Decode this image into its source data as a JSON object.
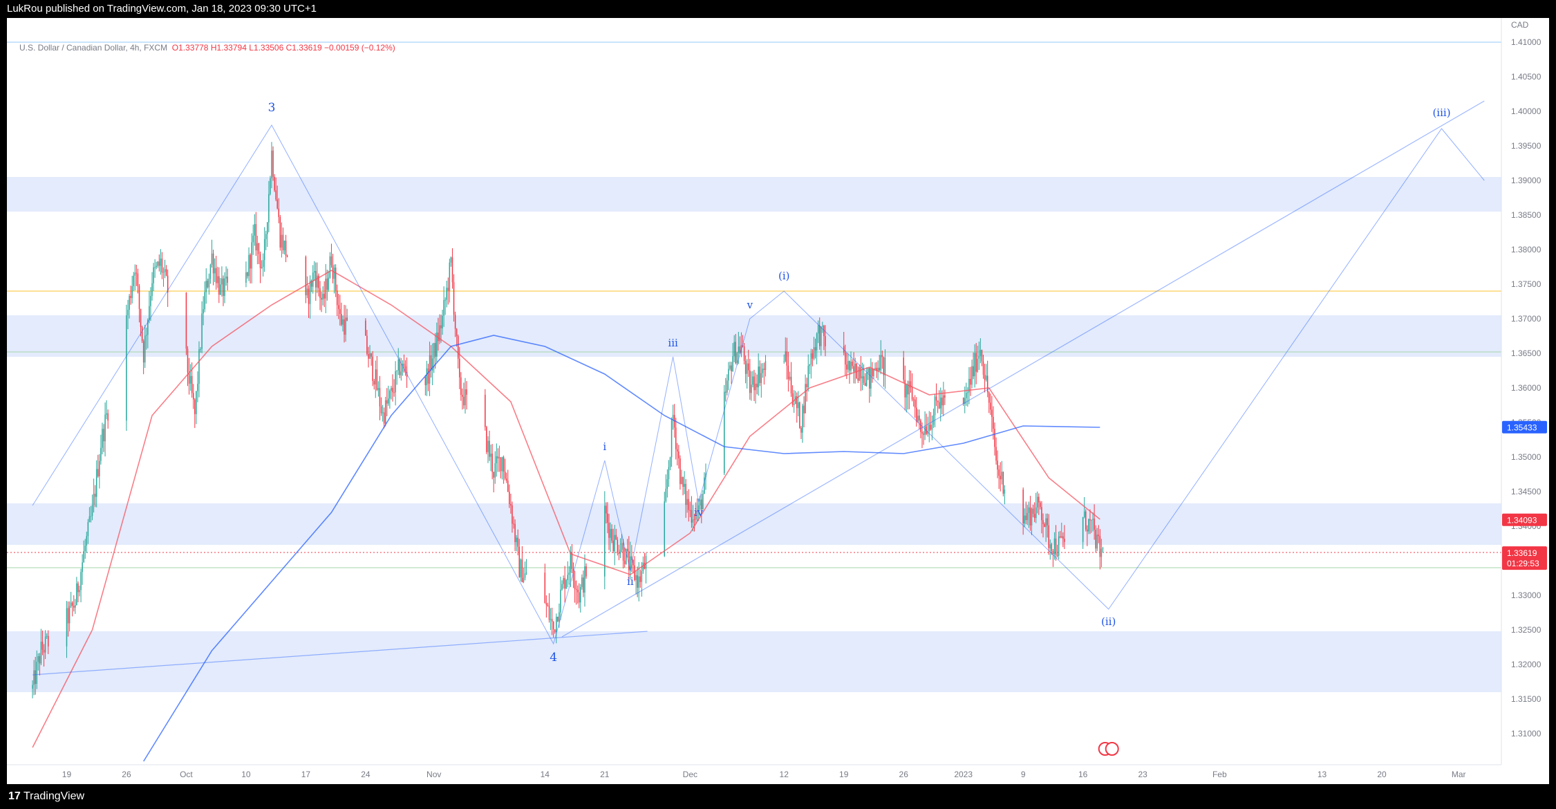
{
  "header": {
    "publisher_line": "LukRou published on TradingView.com, Jan 18, 2023 09:30 UTC+1"
  },
  "footer": {
    "logo_glyph": "17",
    "brand": "TradingView"
  },
  "legend": {
    "symbol": "U.S. Dollar / Canadian Dollar, 4h, FXCM",
    "open": "O1.33778",
    "high": "H1.33794",
    "low": "L1.33506",
    "close": "C1.33619",
    "change": "−0.00159 (−0.12%)"
  },
  "colors": {
    "up": "#26a69a",
    "down": "#f23645",
    "ma_fast": "#f7525f",
    "ma_slow": "#2962ff",
    "zone": "#e3ebfc",
    "wave": "#2962ff",
    "hline_yellow": "#fbc02d",
    "hline_green": "#a5d6a7",
    "hline_blue": "#90caf9",
    "price_tag": "#f23645",
    "ma_tag": "#2962ff"
  },
  "chart_data": {
    "type": "candlestick",
    "symbol": "USDCAD",
    "timeframe": "4h",
    "currency_label": "CAD",
    "ylim": [
      1.3055,
      1.4135
    ],
    "y_ticks": [
      "1.31000",
      "1.31500",
      "1.32000",
      "1.32500",
      "1.33000",
      "1.33500",
      "1.34000",
      "1.34500",
      "1.35000",
      "1.35500",
      "1.36000",
      "1.36500",
      "1.37000",
      "1.37500",
      "1.38000",
      "1.38500",
      "1.39000",
      "1.39500",
      "1.40000",
      "1.40500",
      "1.41000"
    ],
    "x_ticks": [
      {
        "label": "19",
        "date": "2022-09-19"
      },
      {
        "label": "26",
        "date": "2022-09-26"
      },
      {
        "label": "Oct",
        "date": "2022-10-03"
      },
      {
        "label": "10",
        "date": "2022-10-10"
      },
      {
        "label": "17",
        "date": "2022-10-17"
      },
      {
        "label": "24",
        "date": "2022-10-24"
      },
      {
        "label": "Nov",
        "date": "2022-11-01"
      },
      {
        "label": "14",
        "date": "2022-11-14"
      },
      {
        "label": "21",
        "date": "2022-11-21"
      },
      {
        "label": "Dec",
        "date": "2022-12-01"
      },
      {
        "label": "12",
        "date": "2022-12-12"
      },
      {
        "label": "19",
        "date": "2022-12-19"
      },
      {
        "label": "26",
        "date": "2022-12-26"
      },
      {
        "label": "2023",
        "date": "2023-01-02"
      },
      {
        "label": "9",
        "date": "2023-01-09"
      },
      {
        "label": "16",
        "date": "2023-01-16"
      },
      {
        "label": "23",
        "date": "2023-01-23"
      },
      {
        "label": "Feb",
        "date": "2023-02-01"
      },
      {
        "label": "13",
        "date": "2023-02-13"
      },
      {
        "label": "20",
        "date": "2023-02-20"
      },
      {
        "label": "Mar",
        "date": "2023-03-01"
      }
    ],
    "price_path": [
      [
        "2022-09-15",
        1.3165
      ],
      [
        "2022-09-16",
        1.322
      ],
      [
        "2022-09-19",
        1.3265
      ],
      [
        "2022-09-20",
        1.329
      ],
      [
        "2022-09-21",
        1.336
      ],
      [
        "2022-09-22",
        1.342
      ],
      [
        "2022-09-23",
        1.352
      ],
      [
        "2022-09-26",
        1.37
      ],
      [
        "2022-09-27",
        1.378
      ],
      [
        "2022-09-28",
        1.365
      ],
      [
        "2022-09-29",
        1.376
      ],
      [
        "2022-09-30",
        1.378
      ],
      [
        "2022-10-03",
        1.364
      ],
      [
        "2022-10-04",
        1.356
      ],
      [
        "2022-10-05",
        1.372
      ],
      [
        "2022-10-06",
        1.379
      ],
      [
        "2022-10-07",
        1.374
      ],
      [
        "2022-10-10",
        1.376
      ],
      [
        "2022-10-11",
        1.382
      ],
      [
        "2022-10-12",
        1.377
      ],
      [
        "2022-10-13",
        1.394
      ],
      [
        "2022-10-14",
        1.382
      ],
      [
        "2022-10-17",
        1.372
      ],
      [
        "2022-10-18",
        1.377
      ],
      [
        "2022-10-19",
        1.372
      ],
      [
        "2022-10-20",
        1.379
      ],
      [
        "2022-10-21",
        1.37
      ],
      [
        "2022-10-24",
        1.366
      ],
      [
        "2022-10-25",
        1.362
      ],
      [
        "2022-10-26",
        1.356
      ],
      [
        "2022-10-27",
        1.359
      ],
      [
        "2022-10-28",
        1.363
      ],
      [
        "2022-10-31",
        1.361
      ],
      [
        "2022-11-01",
        1.365
      ],
      [
        "2022-11-02",
        1.37
      ],
      [
        "2022-11-03",
        1.378
      ],
      [
        "2022-11-04",
        1.36
      ],
      [
        "2022-11-07",
        1.353
      ],
      [
        "2022-11-08",
        1.348
      ],
      [
        "2022-11-09",
        1.35
      ],
      [
        "2022-11-10",
        1.343
      ],
      [
        "2022-11-11",
        1.334
      ],
      [
        "2022-11-14",
        1.329
      ],
      [
        "2022-11-15",
        1.325
      ],
      [
        "2022-11-16",
        1.331
      ],
      [
        "2022-11-17",
        1.335
      ],
      [
        "2022-11-18",
        1.33
      ],
      [
        "2022-11-21",
        1.342
      ],
      [
        "2022-11-22",
        1.338
      ],
      [
        "2022-11-23",
        1.337
      ],
      [
        "2022-11-24",
        1.334
      ],
      [
        "2022-11-25",
        1.332
      ],
      [
        "2022-11-28",
        1.342
      ],
      [
        "2022-11-29",
        1.356
      ],
      [
        "2022-11-30",
        1.346
      ],
      [
        "2022-12-01",
        1.342
      ],
      [
        "2022-12-02",
        1.342
      ],
      [
        "2022-12-05",
        1.358
      ],
      [
        "2022-12-06",
        1.365
      ],
      [
        "2022-12-07",
        1.366
      ],
      [
        "2022-12-08",
        1.36
      ],
      [
        "2022-12-09",
        1.362
      ],
      [
        "2022-12-12",
        1.365
      ],
      [
        "2022-12-13",
        1.359
      ],
      [
        "2022-12-14",
        1.355
      ],
      [
        "2022-12-15",
        1.364
      ],
      [
        "2022-12-16",
        1.368
      ],
      [
        "2022-12-19",
        1.364
      ],
      [
        "2022-12-20",
        1.362
      ],
      [
        "2022-12-21",
        1.363
      ],
      [
        "2022-12-22",
        1.361
      ],
      [
        "2022-12-23",
        1.364
      ],
      [
        "2022-12-26",
        1.36
      ],
      [
        "2022-12-27",
        1.359
      ],
      [
        "2022-12-28",
        1.354
      ],
      [
        "2022-12-29",
        1.355
      ],
      [
        "2022-12-30",
        1.358
      ],
      [
        "2023-01-02",
        1.357
      ],
      [
        "2023-01-03",
        1.362
      ],
      [
        "2023-01-04",
        1.366
      ],
      [
        "2023-01-05",
        1.358
      ],
      [
        "2023-01-06",
        1.348
      ],
      [
        "2023-01-09",
        1.341
      ],
      [
        "2023-01-10",
        1.342
      ],
      [
        "2023-01-11",
        1.343
      ],
      [
        "2023-01-12",
        1.338
      ],
      [
        "2023-01-13",
        1.337
      ],
      [
        "2023-01-16",
        1.341
      ],
      [
        "2023-01-17",
        1.34
      ],
      [
        "2023-01-18",
        1.3362
      ]
    ],
    "moving_averages": [
      {
        "name": "fast",
        "points": [
          [
            "2022-09-15",
            1.308
          ],
          [
            "2022-09-22",
            1.325
          ],
          [
            "2022-09-29",
            1.356
          ],
          [
            "2022-10-06",
            1.366
          ],
          [
            "2022-10-13",
            1.372
          ],
          [
            "2022-10-20",
            1.377
          ],
          [
            "2022-10-27",
            1.372
          ],
          [
            "2022-11-03",
            1.366
          ],
          [
            "2022-11-10",
            1.358
          ],
          [
            "2022-11-17",
            1.336
          ],
          [
            "2022-11-24",
            1.333
          ],
          [
            "2022-12-01",
            1.339
          ],
          [
            "2022-12-08",
            1.353
          ],
          [
            "2022-12-15",
            1.36
          ],
          [
            "2022-12-22",
            1.363
          ],
          [
            "2022-12-29",
            1.359
          ],
          [
            "2023-01-05",
            1.36
          ],
          [
            "2023-01-12",
            1.347
          ],
          [
            "2023-01-18",
            1.341
          ]
        ]
      },
      {
        "name": "slow",
        "points": [
          [
            "2022-09-28",
            1.306
          ],
          [
            "2022-10-06",
            1.322
          ],
          [
            "2022-10-13",
            1.332
          ],
          [
            "2022-10-20",
            1.342
          ],
          [
            "2022-10-27",
            1.356
          ],
          [
            "2022-11-03",
            1.366
          ],
          [
            "2022-11-08",
            1.3676
          ],
          [
            "2022-11-14",
            1.366
          ],
          [
            "2022-11-21",
            1.362
          ],
          [
            "2022-11-28",
            1.356
          ],
          [
            "2022-12-05",
            1.3515
          ],
          [
            "2022-12-12",
            1.3505
          ],
          [
            "2022-12-19",
            1.3508
          ],
          [
            "2022-12-26",
            1.3505
          ],
          [
            "2023-01-02",
            1.352
          ],
          [
            "2023-01-09",
            1.3545
          ],
          [
            "2023-01-18",
            1.3543
          ]
        ]
      }
    ],
    "zones": [
      [
        1.3855,
        1.3905
      ],
      [
        1.3645,
        1.3705
      ],
      [
        1.3373,
        1.3433
      ],
      [
        1.316,
        1.3248
      ]
    ],
    "horizontal_lines": [
      {
        "price": 1.41,
        "color": "blue"
      },
      {
        "price": 1.374,
        "color": "yellow"
      },
      {
        "price": 1.3652,
        "color": "green"
      },
      {
        "price": 1.3362,
        "color": "red-dotted"
      },
      {
        "price": 1.334,
        "color": "green"
      }
    ],
    "wave_path": [
      [
        "2022-09-15",
        1.343
      ],
      [
        "2022-10-13",
        1.398
      ],
      [
        "2022-11-15",
        1.323
      ],
      [
        "2022-11-21",
        1.3495
      ],
      [
        "2022-11-24",
        1.3335
      ],
      [
        "2022-11-29",
        1.3645
      ],
      [
        "2022-12-02",
        1.3435
      ],
      [
        "2022-12-08",
        1.37
      ],
      [
        "2022-12-12",
        1.374
      ],
      [
        "2023-01-19",
        1.328
      ],
      [
        "2023-02-27",
        1.3975
      ],
      [
        "2023-03-04",
        1.39
      ]
    ],
    "trendlines": [
      {
        "from": [
          "2022-09-15",
          1.3185
        ],
        "to": [
          "2022-11-26",
          1.3248
        ]
      },
      {
        "from": [
          "2022-11-16",
          1.324
        ],
        "to": [
          "2023-03-04",
          1.4015
        ]
      }
    ],
    "wave_labels": [
      {
        "text": "3",
        "date": "2022-10-13",
        "price": 1.4
      },
      {
        "text": "4",
        "date": "2022-11-15",
        "price": 1.3205
      },
      {
        "text": "i",
        "date": "2022-11-21",
        "price": 1.351
      },
      {
        "text": "ii",
        "date": "2022-11-24",
        "price": 1.3315
      },
      {
        "text": "iii",
        "date": "2022-11-29",
        "price": 1.366
      },
      {
        "text": "iv",
        "date": "2022-12-02",
        "price": 1.3415
      },
      {
        "text": "v",
        "date": "2022-12-08",
        "price": 1.3715
      },
      {
        "text": "(i)",
        "date": "2022-12-12",
        "price": 1.3757
      },
      {
        "text": "(ii)",
        "date": "2023-01-19",
        "price": 1.3257
      },
      {
        "text": "(iii)",
        "date": "2023-02-27",
        "price": 1.3993
      }
    ],
    "price_tags": [
      {
        "price": 1.35433,
        "label": "1.35433",
        "color": "blue"
      },
      {
        "price": 1.34093,
        "label": "1.34093",
        "color": "red"
      },
      {
        "price": 1.33619,
        "label": "1.33619",
        "sub": "01:29:53",
        "color": "red"
      }
    ],
    "event_markers": [
      {
        "date": "2023-01-19",
        "price": 1.3078,
        "count": 2
      }
    ]
  }
}
